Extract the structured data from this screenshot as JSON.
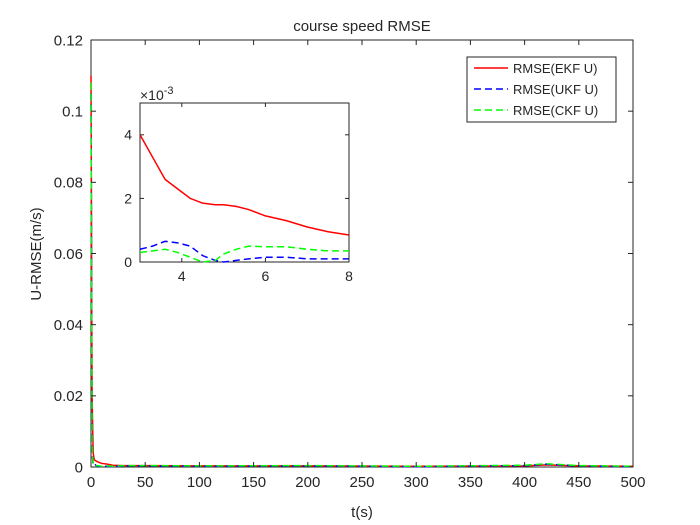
{
  "chart_data": [
    {
      "type": "line",
      "title": "course speed RMSE",
      "xlabel": "t(s)",
      "ylabel": "U-RMSE(m/s)",
      "xlim": [
        0,
        500
      ],
      "ylim": [
        0,
        0.12
      ],
      "xticks": [
        "0",
        "50",
        "100",
        "150",
        "200",
        "250",
        "300",
        "350",
        "400",
        "450",
        "500"
      ],
      "yticks": [
        "0",
        "0.02",
        "0.04",
        "0.06",
        "0.08",
        "0.1",
        "0.12"
      ],
      "grid": false,
      "legend_position": "top-right",
      "series": [
        {
          "name": "RMSE(EKF U)",
          "color": "#ff0000",
          "style": "solid",
          "x": [
            0,
            1,
            2,
            3,
            4,
            6,
            8,
            10,
            15,
            20,
            30,
            50,
            100,
            200,
            300,
            400,
            420,
            450,
            500
          ],
          "y": [
            0.11,
            0.02,
            0.004,
            0.002,
            0.0018,
            0.0015,
            0.0012,
            0.001,
            0.0008,
            0.0005,
            0.0004,
            0.0004,
            0.0003,
            0.0003,
            0.0002,
            0.0003,
            0.0006,
            0.0003,
            0.0002
          ]
        },
        {
          "name": "RMSE(UKF U)",
          "color": "#0000ff",
          "style": "dashed",
          "x": [
            0,
            1,
            2,
            3,
            4,
            6,
            8,
            10,
            15,
            20,
            30,
            50,
            100,
            200,
            300,
            400,
            420,
            450,
            500
          ],
          "y": [
            0.105,
            0.004,
            0.0006,
            0.0003,
            0.0006,
            0.0001,
            0.0002,
            0.0001,
            0.0002,
            0.0001,
            0.0003,
            0.0003,
            0.0002,
            0.0003,
            0.0001,
            0.0004,
            0.0008,
            0.0003,
            0.0001
          ]
        },
        {
          "name": "RMSE(CKF U)",
          "color": "#00ff00",
          "style": "dashed",
          "x": [
            0,
            1,
            2,
            3,
            4,
            6,
            8,
            10,
            15,
            20,
            30,
            50,
            100,
            200,
            300,
            400,
            420,
            450,
            500
          ],
          "y": [
            0.108,
            0.005,
            0.0008,
            0.0003,
            0.0003,
            0.0004,
            0.0003,
            0.0002,
            0.0003,
            0.0002,
            0.0004,
            0.0004,
            0.0003,
            0.0004,
            0.0002,
            0.0005,
            0.0009,
            0.0004,
            0.0002
          ]
        }
      ]
    },
    {
      "type": "line",
      "xlim": [
        3,
        8
      ],
      "ylim": [
        0,
        5
      ],
      "y_scale_label": "×10",
      "y_scale_exponent": "-3",
      "xticks": [
        "4",
        "6",
        "8"
      ],
      "yticks": [
        "0",
        "2",
        "4"
      ],
      "series": [
        {
          "color": "#ff0000",
          "style": "solid",
          "x": [
            3,
            3.3,
            3.6,
            3.9,
            4.2,
            4.5,
            4.8,
            5,
            5.3,
            5.6,
            6,
            6.5,
            7,
            7.5,
            8
          ],
          "y": [
            4.0,
            3.3,
            2.6,
            2.3,
            2.0,
            1.85,
            1.8,
            1.8,
            1.75,
            1.65,
            1.45,
            1.3,
            1.1,
            0.95,
            0.85
          ]
        },
        {
          "color": "#0000ff",
          "style": "dashed",
          "x": [
            3,
            3.3,
            3.6,
            3.9,
            4.2,
            4.5,
            4.8,
            5,
            5.3,
            5.6,
            6,
            6.5,
            7,
            7.5,
            8
          ],
          "y": [
            0.4,
            0.5,
            0.65,
            0.6,
            0.5,
            0.2,
            0.05,
            0.0,
            0.05,
            0.1,
            0.15,
            0.15,
            0.1,
            0.1,
            0.1
          ]
        },
        {
          "color": "#00ff00",
          "style": "dashed",
          "x": [
            3,
            3.3,
            3.6,
            3.9,
            4.2,
            4.5,
            4.8,
            5,
            5.3,
            5.6,
            6,
            6.5,
            7,
            7.5,
            8
          ],
          "y": [
            0.3,
            0.35,
            0.4,
            0.3,
            0.15,
            0.0,
            0.05,
            0.25,
            0.4,
            0.5,
            0.48,
            0.48,
            0.4,
            0.35,
            0.35
          ]
        }
      ]
    }
  ]
}
